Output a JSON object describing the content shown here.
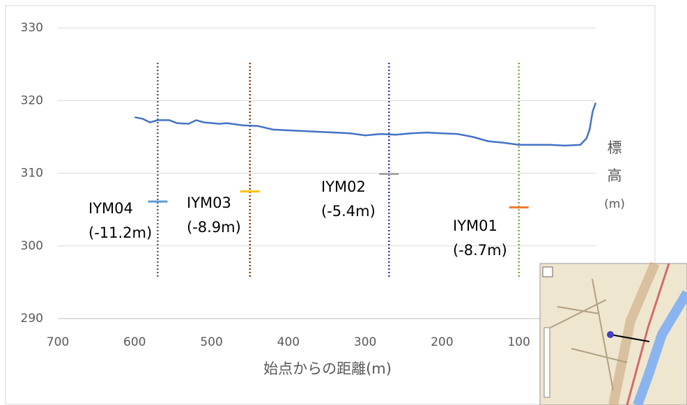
{
  "chart_data": {
    "type": "line",
    "x_label": "始点からの距離(m)",
    "y_label": [
      "標",
      "高",
      "(m)"
    ],
    "xlim": [
      700,
      0
    ],
    "ylim": [
      290,
      330
    ],
    "xticks": [
      700,
      600,
      500,
      400,
      300,
      200,
      100
    ],
    "yticks": [
      290,
      300,
      310,
      320,
      330
    ],
    "grid": true,
    "x": [
      600,
      590,
      580,
      570,
      555,
      545,
      530,
      520,
      510,
      490,
      480,
      460,
      440,
      420,
      400,
      380,
      360,
      340,
      320,
      300,
      280,
      260,
      240,
      220,
      200,
      180,
      160,
      140,
      120,
      100,
      80,
      60,
      40,
      20,
      12,
      8,
      4,
      0
    ],
    "series": [
      {
        "color": "#4472c4",
        "values": [
          317.7,
          317.5,
          317.0,
          317.3,
          317.3,
          316.9,
          316.8,
          317.3,
          317.0,
          316.8,
          316.9,
          316.6,
          316.5,
          316.0,
          315.9,
          315.8,
          315.7,
          315.6,
          315.5,
          315.2,
          315.4,
          315.3,
          315.5,
          315.6,
          315.5,
          315.4,
          315.0,
          314.4,
          314.2,
          313.9,
          313.9,
          313.9,
          313.8,
          313.9,
          314.8,
          316.0,
          318.5,
          319.7
        ]
      }
    ],
    "wells": [
      {
        "label": [
          "IYM04",
          "(-11.2m)"
        ],
        "x": 570,
        "top": 325.2,
        "bottom": 295.5,
        "level": 306.1,
        "color": "#595959",
        "level_color": "#5b9bd5"
      },
      {
        "label": [
          "IYM03",
          "(-8.9m)"
        ],
        "x": 450,
        "top": 325.2,
        "bottom": 295.5,
        "level": 307.5,
        "color": "#843c0c",
        "level_color": "#ffc000"
      },
      {
        "label": [
          "IYM02",
          "(-5.4m)"
        ],
        "x": 269,
        "top": 325.2,
        "bottom": 295.5,
        "level": 309.9,
        "color": "#2f3f9e",
        "level_color": "#a5a5a5"
      },
      {
        "label": [
          "IYM01",
          "(-8.7m)"
        ],
        "x": 100,
        "top": 325.2,
        "bottom": 295.5,
        "level": 305.3,
        "color": "#70ad47",
        "level_color": "#ed7d31"
      }
    ]
  }
}
